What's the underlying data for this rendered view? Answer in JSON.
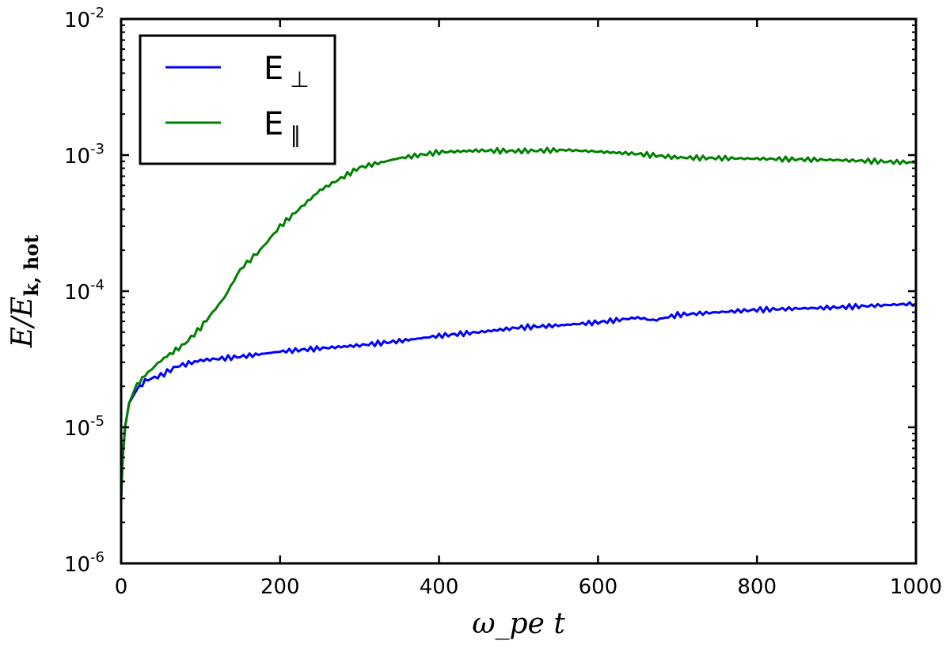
{
  "chart_data": {
    "type": "line",
    "title": "",
    "xlabel": "ω_pe t",
    "xlabel_main": "ω",
    "xlabel_sub": "pe",
    "xlabel_tail": "t",
    "ylabel": "E/E_k,hot",
    "ylabel_main": "E/E",
    "ylabel_sub": "k, hot",
    "xlim": [
      0,
      1000
    ],
    "ylim": [
      1e-06,
      0.01
    ],
    "yscale": "log",
    "x_ticks": [
      "0",
      "200",
      "400",
      "600",
      "800",
      "1000"
    ],
    "x_tick_values": [
      0,
      200,
      400,
      600,
      800,
      1000
    ],
    "y_ticks": [
      {
        "value": 0.01,
        "base": "10",
        "exp": "-2"
      },
      {
        "value": 0.001,
        "base": "10",
        "exp": "-3"
      },
      {
        "value": 0.0001,
        "base": "10",
        "exp": "-4"
      },
      {
        "value": 1e-05,
        "base": "10",
        "exp": "-5"
      },
      {
        "value": 1e-06,
        "base": "10",
        "exp": "-6"
      }
    ],
    "grid": false,
    "legend_position": "top-left",
    "series": [
      {
        "name": "E ⊥",
        "label_main": "E",
        "label_sub": "⊥",
        "color": "#0000ff",
        "x": [
          0,
          2,
          5,
          10,
          20,
          30,
          50,
          70,
          100,
          150,
          200,
          250,
          300,
          350,
          400,
          450,
          500,
          550,
          600,
          650,
          670,
          700,
          800,
          900,
          1000
        ],
        "values": [
          3e-06,
          6e-06,
          1e-05,
          1.5e-05,
          1.9e-05,
          2.2e-05,
          2.4e-05,
          2.8e-05,
          3.1e-05,
          3.3e-05,
          3.6e-05,
          3.8e-05,
          4e-05,
          4.3e-05,
          4.7e-05,
          5e-05,
          5.4e-05,
          5.6e-05,
          5.9e-05,
          6.4e-05,
          6.1e-05,
          6.7e-05,
          7.3e-05,
          7.6e-05,
          8.1e-05
        ]
      },
      {
        "name": "E ∥",
        "label_main": "E",
        "label_sub": "∥",
        "color": "#008000",
        "x": [
          0,
          2,
          5,
          10,
          20,
          30,
          50,
          80,
          100,
          130,
          150,
          175,
          200,
          250,
          300,
          350,
          400,
          450,
          500,
          560,
          600,
          650,
          700,
          800,
          900,
          1000
        ],
        "values": [
          3e-06,
          6e-06,
          1e-05,
          1.5e-05,
          2.1e-05,
          2.4e-05,
          3.1e-05,
          4.1e-05,
          5.4e-05,
          9e-05,
          0.000145,
          0.0002,
          0.0003,
          0.00055,
          0.00081,
          0.00095,
          0.00105,
          0.00108,
          0.00107,
          0.00109,
          0.00106,
          0.00102,
          0.00096,
          0.00094,
          0.00092,
          0.00088
        ]
      }
    ]
  }
}
